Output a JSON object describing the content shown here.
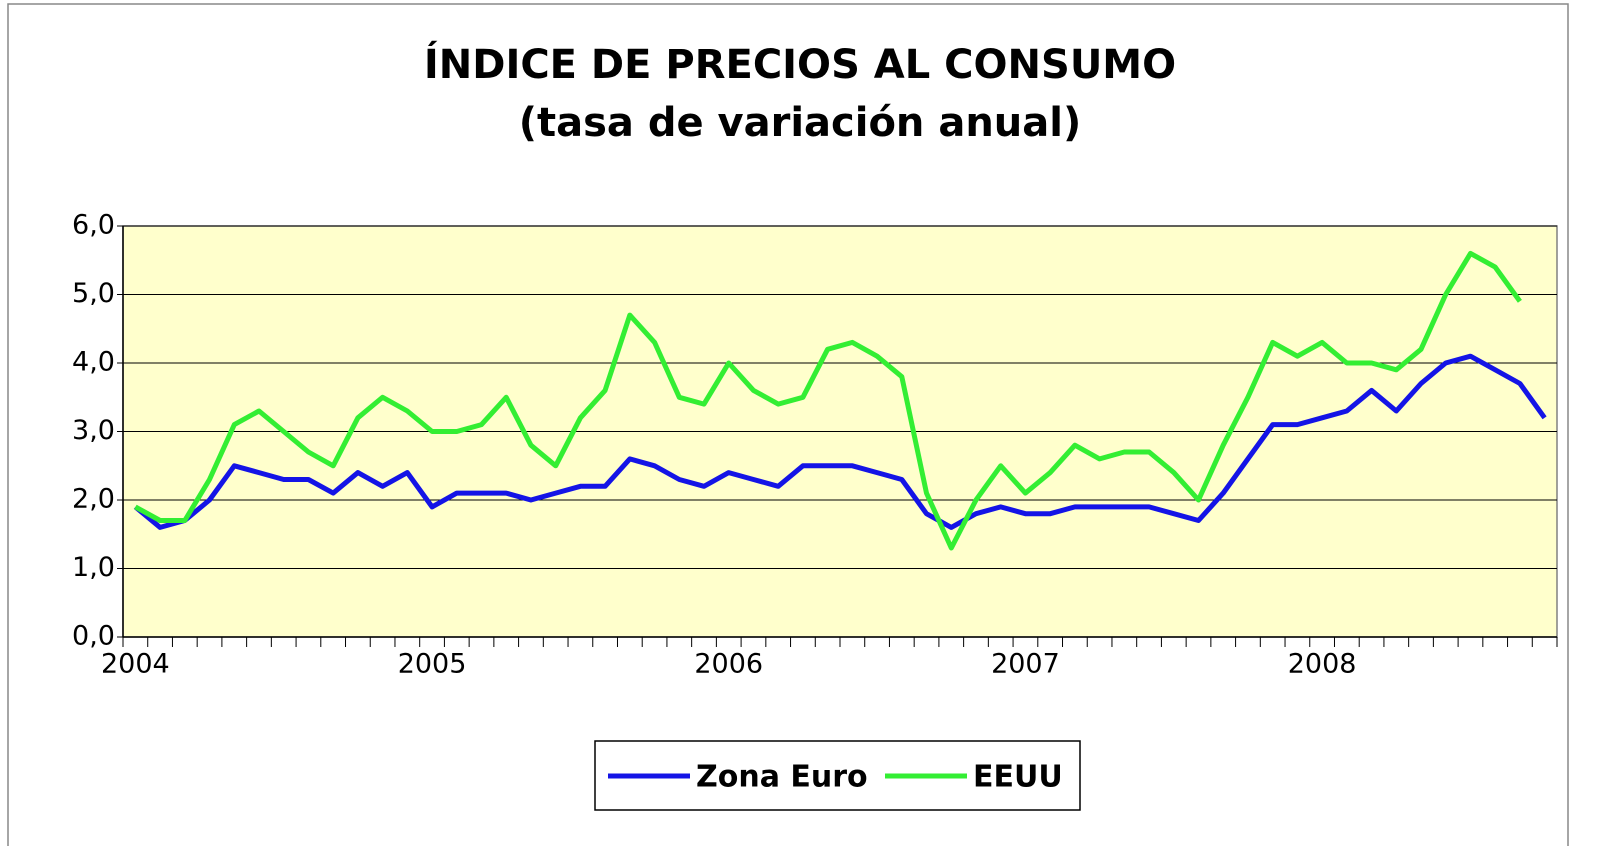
{
  "chart_data": {
    "type": "line",
    "title": "ÍNDICE DE PRECIOS AL CONSUMO",
    "subtitle": "(tasa de variación anual)",
    "categories": [
      "2004",
      null,
      null,
      null,
      null,
      null,
      null,
      null,
      null,
      null,
      null,
      null,
      "2005",
      null,
      null,
      null,
      null,
      null,
      null,
      null,
      null,
      null,
      null,
      null,
      "2006",
      null,
      null,
      null,
      null,
      null,
      null,
      null,
      null,
      null,
      null,
      null,
      "2007",
      null,
      null,
      null,
      null,
      null,
      null,
      null,
      null,
      null,
      null,
      null,
      "2008",
      null,
      null,
      null,
      null,
      null,
      null,
      null,
      null,
      null
    ],
    "series": [
      {
        "name": "Zona Euro",
        "color": "#1414e6",
        "values": [
          1.9,
          1.6,
          1.7,
          2.0,
          2.5,
          2.4,
          2.3,
          2.3,
          2.1,
          2.4,
          2.2,
          2.4,
          1.9,
          2.1,
          2.1,
          2.1,
          2.0,
          2.1,
          2.2,
          2.2,
          2.6,
          2.5,
          2.3,
          2.2,
          2.4,
          2.3,
          2.2,
          2.5,
          2.5,
          2.5,
          2.4,
          2.3,
          1.8,
          1.6,
          1.8,
          1.9,
          1.8,
          1.8,
          1.9,
          1.9,
          1.9,
          1.9,
          1.8,
          1.7,
          2.1,
          2.6,
          3.1,
          3.1,
          3.2,
          3.3,
          3.6,
          3.3,
          3.7,
          4.0,
          4.1,
          3.9,
          3.7,
          3.2
        ]
      },
      {
        "name": "EEUU",
        "color": "#33ee33",
        "values": [
          1.9,
          1.7,
          1.7,
          2.3,
          3.1,
          3.3,
          3.0,
          2.7,
          2.5,
          3.2,
          3.5,
          3.3,
          3.0,
          3.0,
          3.1,
          3.5,
          2.8,
          2.5,
          3.2,
          3.6,
          4.7,
          4.3,
          3.5,
          3.4,
          4.0,
          3.6,
          3.4,
          3.5,
          4.2,
          4.3,
          4.1,
          3.8,
          2.1,
          1.3,
          2.0,
          2.5,
          2.1,
          2.4,
          2.8,
          2.6,
          2.7,
          2.7,
          2.4,
          2.0,
          2.8,
          3.5,
          4.3,
          4.1,
          4.3,
          4.0,
          4.0,
          3.9,
          4.2,
          5.0,
          5.6,
          5.4,
          4.9,
          null
        ]
      }
    ],
    "ylim": [
      0,
      6
    ],
    "yticks": [
      {
        "value": 0,
        "label": "0,0"
      },
      {
        "value": 1,
        "label": "1,0"
      },
      {
        "value": 2,
        "label": "2,0"
      },
      {
        "value": 3,
        "label": "3,0"
      },
      {
        "value": 4,
        "label": "4,0"
      },
      {
        "value": 5,
        "label": "5,0"
      },
      {
        "value": 6,
        "label": "6,0"
      }
    ],
    "grid": true,
    "legend": "bottom",
    "plot_background": "#ffffcc"
  }
}
